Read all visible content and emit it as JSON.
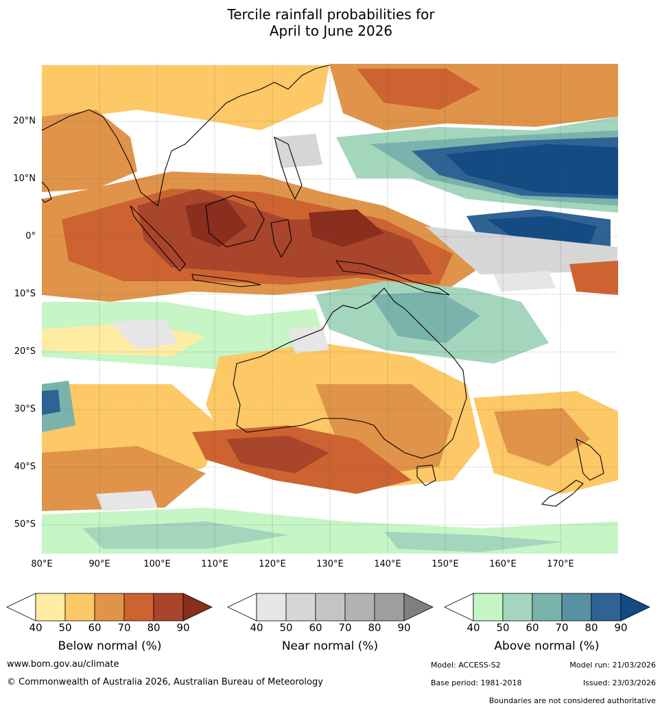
{
  "title": {
    "line1": "Tercile rainfall probabilities for",
    "line2": "April to June 2026"
  },
  "map": {
    "lon_labels": [
      "80°E",
      "90°E",
      "100°E",
      "110°E",
      "120°E",
      "130°E",
      "140°E",
      "150°E",
      "160°E",
      "170°E"
    ],
    "lat_labels": [
      "20°N",
      "10°N",
      "0°",
      "10°S",
      "20°S",
      "30°S",
      "40°S",
      "50°S"
    ]
  },
  "legends": [
    {
      "title": "Below normal (%)",
      "ticks": [
        "40",
        "50",
        "60",
        "70",
        "80",
        "90"
      ],
      "colors": [
        "#ffeca3",
        "#fdc866",
        "#e0944a",
        "#cc6331",
        "#a8452a",
        "#8a2e1e"
      ]
    },
    {
      "title": "Near normal (%)",
      "ticks": [
        "40",
        "50",
        "60",
        "70",
        "80",
        "90"
      ],
      "colors": [
        "#e6e6e6",
        "#d6d6d6",
        "#c4c4c4",
        "#b2b2b2",
        "#9e9e9e",
        "#808080"
      ]
    },
    {
      "title": "Above normal (%)",
      "ticks": [
        "40",
        "50",
        "60",
        "70",
        "80",
        "90"
      ],
      "colors": [
        "#c6f5c6",
        "#a3d6bd",
        "#79b3ab",
        "#5891a2",
        "#2e6393",
        "#134b82"
      ]
    }
  ],
  "footer": {
    "website": "www.bom.gov.au/climate",
    "copyright": "© Commonwealth of Australia 2026, Australian Bureau of Meteorology",
    "model": "Model: ACCESS-S2",
    "model_run": "Model run: 21/03/2026",
    "base_period": "Base period: 1981-2018",
    "issued": "Issued: 23/03/2026",
    "disclaimer": "Boundaries are not considered authoritative"
  }
}
